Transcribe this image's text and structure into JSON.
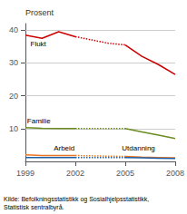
{
  "chart_data": {
    "type": "line",
    "ylabel": "Prosent",
    "source": "Kilde: Befolkningsstatistikk og Sosialhjelpsstatistikk,\nStatistisk sentralbyrå.",
    "xlim": [
      1999,
      2008
    ],
    "xticks": [
      1999,
      2002,
      2005,
      2008
    ],
    "ylim": [
      0,
      42
    ],
    "yticks": [
      10,
      20,
      30,
      40
    ],
    "grid": true,
    "series": [
      {
        "name": "Flukt",
        "color": "#cc0000",
        "line_style": "solid",
        "x": [
          1999,
          2000,
          2001,
          2002
        ],
        "values": [
          38.5,
          37.5,
          39.5,
          38.0
        ]
      },
      {
        "name": "Flukt",
        "color": "#cc0000",
        "line_style": "dotted",
        "x": [
          2002,
          2003,
          2004,
          2005
        ],
        "values": [
          38.0,
          37.0,
          36.0,
          35.5
        ]
      },
      {
        "name": "Flukt",
        "color": "#cc0000",
        "line_style": "solid",
        "x": [
          2005,
          2006,
          2007,
          2008
        ],
        "values": [
          35.5,
          32.0,
          29.5,
          26.5
        ]
      },
      {
        "name": "Familie",
        "color": "#6b8c21",
        "line_style": "solid",
        "x": [
          1999,
          2000,
          2001,
          2002
        ],
        "values": [
          10.3,
          10.1,
          10.0,
          10.0
        ]
      },
      {
        "name": "Familie",
        "color": "#6b8c21",
        "line_style": "dotted",
        "x": [
          2002,
          2003,
          2004,
          2005
        ],
        "values": [
          10.0,
          10.0,
          10.0,
          10.0
        ]
      },
      {
        "name": "Familie",
        "color": "#6b8c21",
        "line_style": "solid",
        "x": [
          2005,
          2006,
          2007,
          2008
        ],
        "values": [
          10.0,
          9.0,
          8.0,
          7.0
        ]
      },
      {
        "name": "Arbeid",
        "color": "#e87722",
        "line_style": "solid",
        "x": [
          1999,
          2000,
          2001,
          2002
        ],
        "values": [
          2.0,
          1.8,
          1.8,
          1.8
        ]
      },
      {
        "name": "Arbeid",
        "color": "#e87722",
        "line_style": "dotted",
        "x": [
          2002,
          2003,
          2004,
          2005
        ],
        "values": [
          1.8,
          1.7,
          1.6,
          1.5
        ]
      },
      {
        "name": "Arbeid",
        "color": "#e87722",
        "line_style": "solid",
        "x": [
          2005,
          2006,
          2007,
          2008
        ],
        "values": [
          1.5,
          1.3,
          1.2,
          1.1
        ]
      },
      {
        "name": "Utdanning",
        "color": "#1f5ea8",
        "line_style": "solid",
        "x": [
          1999,
          2000,
          2001,
          2002
        ],
        "values": [
          1.2,
          1.2,
          1.2,
          1.2
        ]
      },
      {
        "name": "Utdanning",
        "color": "#1f5ea8",
        "line_style": "dotted",
        "x": [
          2002,
          2003,
          2004,
          2005
        ],
        "values": [
          1.2,
          1.2,
          1.2,
          1.2
        ]
      },
      {
        "name": "Utdanning",
        "color": "#1f5ea8",
        "line_style": "solid",
        "x": [
          2005,
          2006,
          2007,
          2008
        ],
        "values": [
          1.2,
          1.1,
          1.0,
          0.9
        ]
      }
    ],
    "annotations": [
      {
        "text": "Flukt",
        "x": 1999.3,
        "y": 36.8
      },
      {
        "text": "Familie",
        "x": 1999.1,
        "y": 11.2
      },
      {
        "text": "Arbeid",
        "x": 2000.7,
        "y": 3.0
      },
      {
        "text": "Utdanning",
        "x": 2004.8,
        "y": 3.0
      }
    ]
  }
}
